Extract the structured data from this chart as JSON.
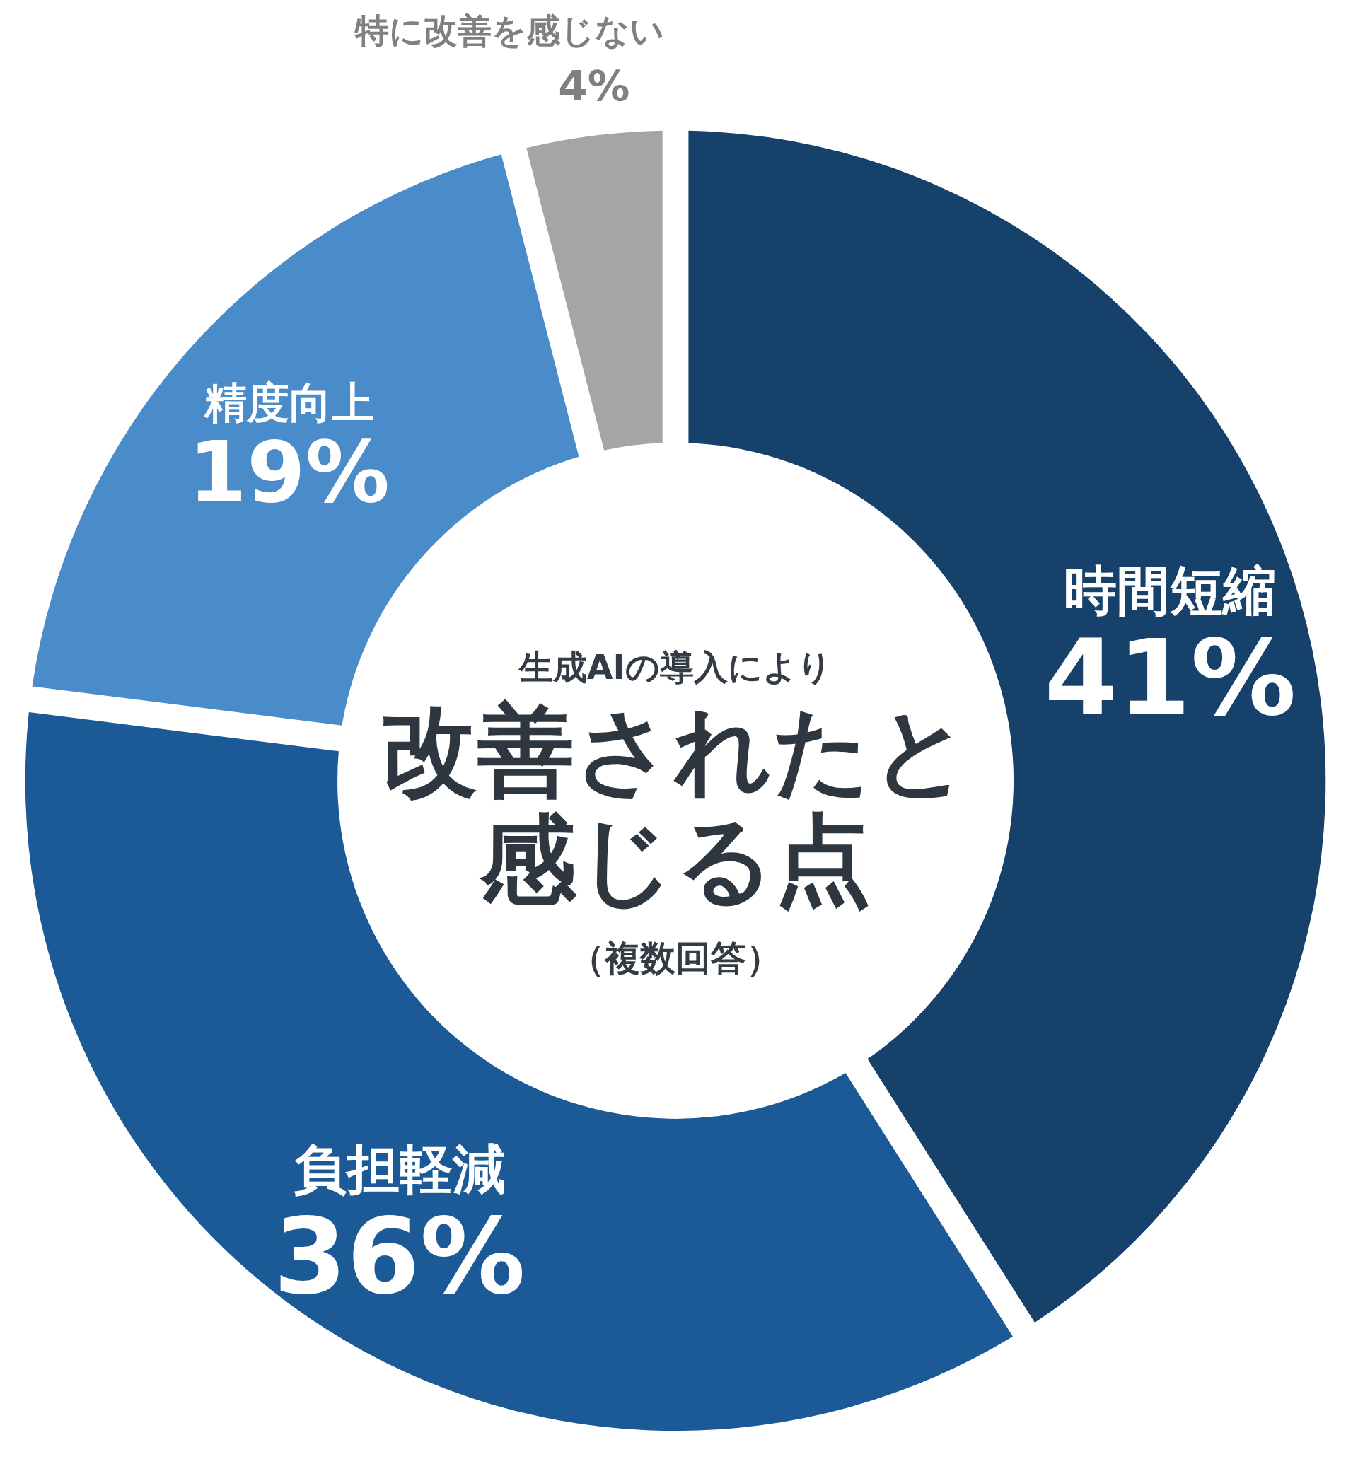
{
  "chart_data": {
    "type": "donut",
    "title": "改善されたと感じる点",
    "subtitle": "生成AIの導入により",
    "annotations": [
      "（複数回答）"
    ],
    "categories": [
      "時間短縮",
      "負担軽減",
      "精度向上",
      "特に改善を感じない"
    ],
    "values": [
      41,
      36,
      19,
      4
    ],
    "value_labels": [
      "41%",
      "36%",
      "19%",
      "4%"
    ],
    "colors": [
      "#16416b",
      "#1b5a96",
      "#4a8bc9",
      "#a5a5a5"
    ]
  }
}
